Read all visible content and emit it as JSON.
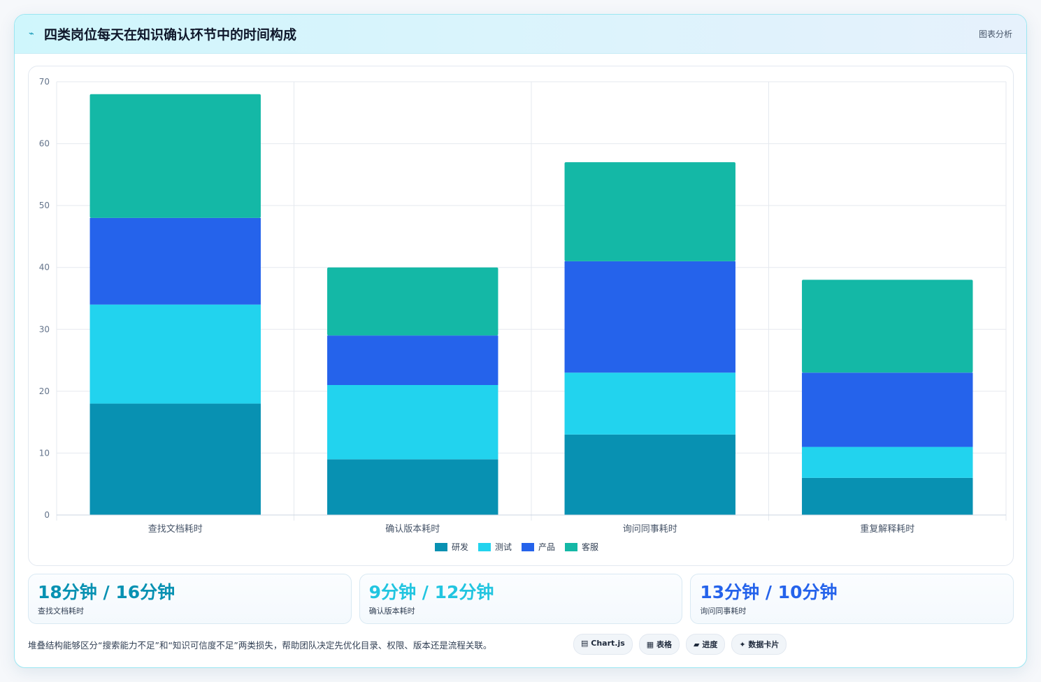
{
  "header": {
    "title": "四类岗位每天在知识确认环节中的时间构成",
    "tag": "图表分析",
    "icon": "wave-icon"
  },
  "chart_data": {
    "type": "bar",
    "stacked": true,
    "categories": [
      "查找文档耗时",
      "确认版本耗时",
      "询问同事耗时",
      "重复解释耗时"
    ],
    "series": [
      {
        "name": "研发",
        "color": "#0891b2",
        "values": [
          18,
          9,
          13,
          6
        ]
      },
      {
        "name": "测试",
        "color": "#22d3ee",
        "values": [
          16,
          12,
          10,
          5
        ]
      },
      {
        "name": "产品",
        "color": "#2563eb",
        "values": [
          14,
          8,
          18,
          12
        ]
      },
      {
        "name": "客服",
        "color": "#14b8a6",
        "values": [
          20,
          11,
          16,
          15
        ]
      }
    ],
    "ylim": [
      0,
      70
    ],
    "yticks": [
      0,
      10,
      20,
      30,
      40,
      50,
      60,
      70
    ],
    "grid": true,
    "legend_position": "bottom-center"
  },
  "stats": [
    {
      "value": "18分钟 / 16分钟",
      "label": "查找文档耗时",
      "color": "#0891b2"
    },
    {
      "value": "9分钟 / 12分钟",
      "label": "确认版本耗时",
      "color": "#22c5e0"
    },
    {
      "value": "13分钟 / 10分钟",
      "label": "询问同事耗时",
      "color": "#2563eb"
    }
  ],
  "footer": {
    "note": "堆叠结构能够区分“搜索能力不足”和“知识可信度不足”两类损失，帮助团队决定先优化目录、权限、版本还是流程关联。",
    "chips": [
      {
        "icon": "chart-icon",
        "glyph": "▤",
        "label": "Chart.js"
      },
      {
        "icon": "table-icon",
        "glyph": "▦",
        "label": "表格"
      },
      {
        "icon": "progress-icon",
        "glyph": "▰",
        "label": "进度"
      },
      {
        "icon": "sparkle-icon",
        "glyph": "✦",
        "label": "数据卡片"
      }
    ]
  }
}
